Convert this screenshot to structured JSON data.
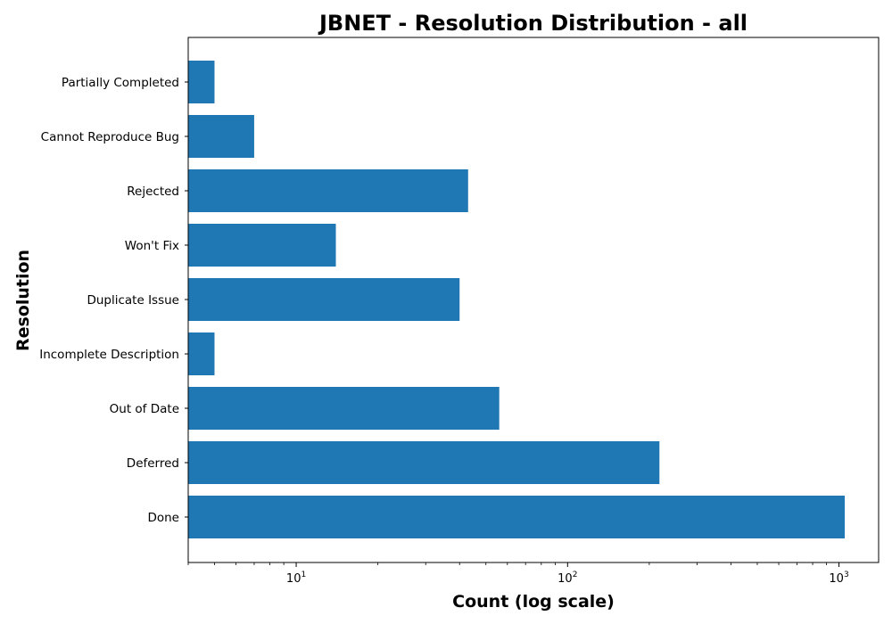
{
  "chart_data": {
    "type": "bar",
    "orientation": "horizontal",
    "title": "JBNET - Resolution Distribution - all",
    "xlabel": "Count (log scale)",
    "ylabel": "Resolution",
    "xscale": "log",
    "xlim": [
      4,
      1400
    ],
    "grid": false,
    "legend": "none",
    "bar_color": "#1f77b4",
    "categories": [
      "Done",
      "Deferred",
      "Out of Date",
      "Incomplete Description",
      "Duplicate Issue",
      "Won't Fix",
      "Rejected",
      "Cannot Reproduce Bug",
      "Partially Completed"
    ],
    "values": [
      1050,
      218,
      56,
      5,
      40,
      14,
      43,
      7,
      5
    ],
    "x_ticks": [
      {
        "base": "10",
        "exp": "1",
        "value": 10
      },
      {
        "base": "10",
        "exp": "2",
        "value": 100
      },
      {
        "base": "10",
        "exp": "3",
        "value": 1000
      }
    ]
  }
}
